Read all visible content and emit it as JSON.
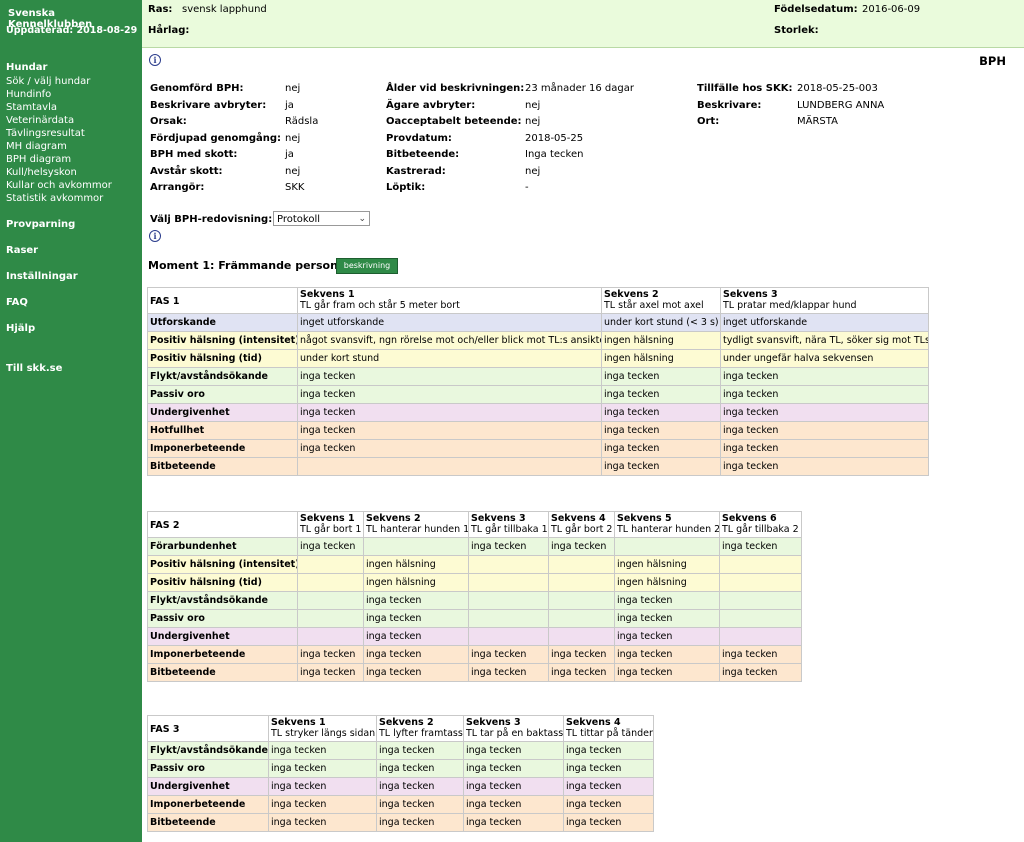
{
  "sidebar": {
    "brand": "Svenska Kennelklubben",
    "updated": "Uppdaterad: 2018-08-29",
    "hundar": {
      "label": "Hundar",
      "items": [
        "Sök / välj hundar",
        "Hundinfo",
        "Stamtavla",
        "Veterinärdata",
        "Tävlingsresultat",
        "MH diagram",
        "BPH diagram",
        "Kull/helsyskon",
        "Kullar och avkommor",
        "Statistik avkommor"
      ]
    },
    "provparning": "Provparning",
    "raser": "Raser",
    "installningar": "Inställningar",
    "faq": "FAQ",
    "hjalp": "Hjälp",
    "till_skk": "Till skk.se"
  },
  "topbar": {
    "ras_label": "Ras:",
    "ras_value": "svensk lapphund",
    "harlag_label": "Hårlag:",
    "fodelsedatum_label": "Födelsedatum:",
    "fodelsedatum_value": "2016-06-09",
    "storlek_label": "Storlek:"
  },
  "page_title": "BPH",
  "info": {
    "col1": [
      {
        "label": "Genomförd BPH:",
        "value": "nej"
      },
      {
        "label": "Beskrivare avbryter:",
        "value": "ja"
      },
      {
        "label": "Orsak:",
        "value": "Rädsla"
      },
      {
        "label": "Fördjupad genomgång:",
        "value": "nej"
      },
      {
        "label": "BPH med skott:",
        "value": "ja"
      },
      {
        "label": "Avstår skott:",
        "value": "nej"
      },
      {
        "label": "Arrangör:",
        "value": "SKK"
      }
    ],
    "col2": [
      {
        "label": "Ålder vid beskrivningen:",
        "value": "23 månader 16 dagar"
      },
      {
        "label": "Ägare avbryter:",
        "value": "nej"
      },
      {
        "label": "Oacceptabelt beteende:",
        "value": "nej"
      },
      {
        "label": "Provdatum:",
        "value": "2018-05-25"
      },
      {
        "label": "Bitbeteende:",
        "value": "Inga tecken"
      },
      {
        "label": "Kastrerad:",
        "value": "nej"
      },
      {
        "label": "Löptik:",
        "value": "-"
      }
    ],
    "col3": [
      {
        "label": "Tillfälle hos SKK:",
        "value": "2018-05-25-003"
      },
      {
        "label": "Beskrivare:",
        "value": "LUNDBERG ANNA"
      },
      {
        "label": "Ort:",
        "value": "MÄRSTA"
      }
    ]
  },
  "select": {
    "label": "Välj BPH-redovisning:",
    "value": "Protokoll"
  },
  "moment": {
    "title": "Moment 1: Främmande person",
    "button": "beskrivning"
  },
  "fas1": {
    "name": "FAS 1",
    "sekvenser": [
      {
        "title": "Sekvens 1",
        "desc": "TL går fram och står 5 meter bort"
      },
      {
        "title": "Sekvens 2",
        "desc": "TL står axel mot axel"
      },
      {
        "title": "Sekvens 3",
        "desc": "TL pratar med/klappar hund"
      }
    ],
    "rows": [
      {
        "label": "Utforskande",
        "color": "blue",
        "cells": [
          "inget utforskande",
          "under kort stund (< 3 s)",
          "inget utforskande"
        ]
      },
      {
        "label": "Positiv hälsning (intensitet)",
        "color": "yellow",
        "cells": [
          "något svansvift, ngn rörelse mot och/eller blick mot TL:s ansikte",
          "ingen hälsning",
          "tydligt svansvift, nära TL, söker sig mot TLs"
        ]
      },
      {
        "label": "Positiv hälsning (tid)",
        "color": "yellow",
        "cells": [
          "under kort stund",
          "ingen hälsning",
          "under ungefär halva sekvensen"
        ]
      },
      {
        "label": "Flykt/avståndsökande",
        "color": "green",
        "cells": [
          "inga tecken",
          "inga tecken",
          "inga tecken"
        ]
      },
      {
        "label": "Passiv oro",
        "color": "green",
        "cells": [
          "inga tecken",
          "inga tecken",
          "inga tecken"
        ]
      },
      {
        "label": "Undergivenhet",
        "color": "pink",
        "cells": [
          "inga tecken",
          "inga tecken",
          "inga tecken"
        ]
      },
      {
        "label": "Hotfullhet",
        "color": "orange",
        "cells": [
          "inga tecken",
          "inga tecken",
          "inga tecken"
        ]
      },
      {
        "label": "Imponerbeteende",
        "color": "orange",
        "cells": [
          "inga tecken",
          "inga tecken",
          "inga tecken"
        ]
      },
      {
        "label": "Bitbeteende",
        "color": "orange",
        "cells": [
          "",
          "inga tecken",
          "inga tecken"
        ]
      }
    ]
  },
  "fas2": {
    "name": "FAS 2",
    "sekvenser": [
      {
        "title": "Sekvens 1",
        "desc": "TL går bort 1"
      },
      {
        "title": "Sekvens 2",
        "desc": "TL hanterar hunden 1"
      },
      {
        "title": "Sekvens 3",
        "desc": "TL går tillbaka 1"
      },
      {
        "title": "Sekvens 4",
        "desc": "TL går bort 2"
      },
      {
        "title": "Sekvens 5",
        "desc": "TL hanterar hunden 2"
      },
      {
        "title": "Sekvens 6",
        "desc": "TL går tillbaka 2"
      }
    ],
    "rows": [
      {
        "label": "Förarbundenhet",
        "color": "green",
        "cells": [
          "inga tecken",
          "",
          "inga tecken",
          "inga tecken",
          "",
          "inga tecken"
        ]
      },
      {
        "label": "Positiv hälsning (intensitet)",
        "color": "yellow",
        "cells": [
          "",
          "ingen hälsning",
          "",
          "",
          "ingen hälsning",
          ""
        ]
      },
      {
        "label": "Positiv hälsning (tid)",
        "color": "yellow",
        "cells": [
          "",
          "ingen hälsning",
          "",
          "",
          "ingen hälsning",
          ""
        ]
      },
      {
        "label": "Flykt/avståndsökande",
        "color": "green",
        "cells": [
          "",
          "inga tecken",
          "",
          "",
          "inga tecken",
          ""
        ]
      },
      {
        "label": "Passiv oro",
        "color": "green",
        "cells": [
          "",
          "inga tecken",
          "",
          "",
          "inga tecken",
          ""
        ]
      },
      {
        "label": "Undergivenhet",
        "color": "pink",
        "cells": [
          "",
          "inga tecken",
          "",
          "",
          "inga tecken",
          ""
        ]
      },
      {
        "label": "Imponerbeteende",
        "color": "orange",
        "cells": [
          "inga tecken",
          "inga tecken",
          "inga tecken",
          "inga tecken",
          "inga tecken",
          "inga tecken"
        ]
      },
      {
        "label": "Bitbeteende",
        "color": "orange",
        "cells": [
          "inga tecken",
          "inga tecken",
          "inga tecken",
          "inga tecken",
          "inga tecken",
          "inga tecken"
        ]
      }
    ]
  },
  "fas3": {
    "name": "FAS 3",
    "sekvenser": [
      {
        "title": "Sekvens 1",
        "desc": "TL stryker längs sidan"
      },
      {
        "title": "Sekvens 2",
        "desc": "TL lyfter framtass"
      },
      {
        "title": "Sekvens 3",
        "desc": "TL tar på en baktass"
      },
      {
        "title": "Sekvens 4",
        "desc": "TL tittar på tänder"
      }
    ],
    "rows": [
      {
        "label": "Flykt/avståndsökande",
        "color": "green",
        "cells": [
          "inga tecken",
          "inga tecken",
          "inga tecken",
          "inga tecken"
        ]
      },
      {
        "label": "Passiv oro",
        "color": "green",
        "cells": [
          "inga tecken",
          "inga tecken",
          "inga tecken",
          "inga tecken"
        ]
      },
      {
        "label": "Undergivenhet",
        "color": "pink",
        "cells": [
          "inga tecken",
          "inga tecken",
          "inga tecken",
          "inga tecken"
        ]
      },
      {
        "label": "Imponerbeteende",
        "color": "orange",
        "cells": [
          "inga tecken",
          "inga tecken",
          "inga tecken",
          "inga tecken"
        ]
      },
      {
        "label": "Bitbeteende",
        "color": "orange",
        "cells": [
          "inga tecken",
          "inga tecken",
          "inga tecken",
          "inga tecken"
        ]
      }
    ]
  }
}
